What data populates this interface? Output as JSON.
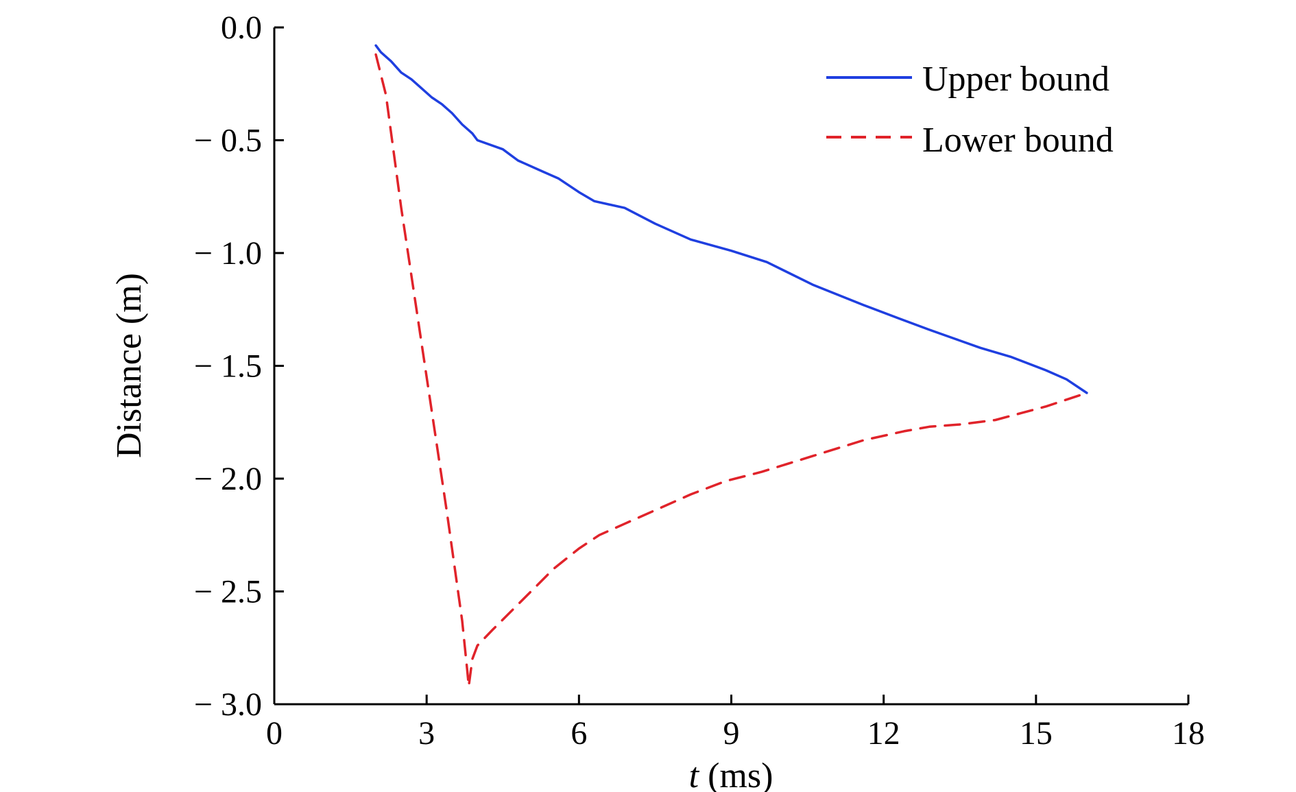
{
  "chart_data": {
    "type": "line",
    "title": "",
    "xlabel_var": "t",
    "xlabel_unit": " (ms)",
    "ylabel": "Distance (m)",
    "xlim": [
      0,
      18
    ],
    "ylim": [
      -3.0,
      0.0
    ],
    "x_ticks": [
      0,
      3,
      6,
      9,
      12,
      15,
      18
    ],
    "x_tick_labels": [
      "0",
      "3",
      "6",
      "9",
      "12",
      "15",
      "18"
    ],
    "y_ticks": [
      0.0,
      -0.5,
      -1.0,
      -1.5,
      -2.0,
      -2.5,
      -3.0
    ],
    "y_tick_labels": [
      "0.0",
      "− 0.5",
      "− 1.0",
      "− 1.5",
      "− 2.0",
      "− 2.5",
      "− 3.0"
    ],
    "grid": false,
    "legend_position": "top-right",
    "series": [
      {
        "name": "Upper bound",
        "color": "#1f3fe0",
        "style": "solid",
        "points": [
          [
            2.0,
            -0.08
          ],
          [
            2.1,
            -0.11
          ],
          [
            2.3,
            -0.15
          ],
          [
            2.5,
            -0.2
          ],
          [
            2.7,
            -0.23
          ],
          [
            2.9,
            -0.27
          ],
          [
            3.1,
            -0.31
          ],
          [
            3.3,
            -0.34
          ],
          [
            3.5,
            -0.38
          ],
          [
            3.7,
            -0.43
          ],
          [
            3.9,
            -0.47
          ],
          [
            4.0,
            -0.5
          ],
          [
            4.5,
            -0.54
          ],
          [
            4.8,
            -0.59
          ],
          [
            5.3,
            -0.64
          ],
          [
            5.6,
            -0.67
          ],
          [
            6.0,
            -0.73
          ],
          [
            6.3,
            -0.77
          ],
          [
            6.9,
            -0.8
          ],
          [
            7.5,
            -0.87
          ],
          [
            8.2,
            -0.94
          ],
          [
            9.0,
            -0.99
          ],
          [
            9.7,
            -1.04
          ],
          [
            10.6,
            -1.14
          ],
          [
            11.6,
            -1.23
          ],
          [
            12.3,
            -1.29
          ],
          [
            12.9,
            -1.34
          ],
          [
            13.4,
            -1.38
          ],
          [
            13.9,
            -1.42
          ],
          [
            14.5,
            -1.46
          ],
          [
            15.2,
            -1.52
          ],
          [
            15.6,
            -1.56
          ],
          [
            16.0,
            -1.62
          ]
        ]
      },
      {
        "name": "Lower bound",
        "color": "#e0232a",
        "style": "dashed",
        "points": [
          [
            2.0,
            -0.12
          ],
          [
            2.2,
            -0.3
          ],
          [
            2.5,
            -0.8
          ],
          [
            2.8,
            -1.25
          ],
          [
            3.1,
            -1.7
          ],
          [
            3.4,
            -2.15
          ],
          [
            3.7,
            -2.63
          ],
          [
            3.8,
            -2.85
          ],
          [
            3.83,
            -2.92
          ],
          [
            3.9,
            -2.8
          ],
          [
            4.0,
            -2.74
          ],
          [
            4.3,
            -2.67
          ],
          [
            4.7,
            -2.58
          ],
          [
            5.1,
            -2.49
          ],
          [
            5.5,
            -2.4
          ],
          [
            6.0,
            -2.31
          ],
          [
            6.4,
            -2.25
          ],
          [
            6.9,
            -2.2
          ],
          [
            7.5,
            -2.14
          ],
          [
            8.2,
            -2.07
          ],
          [
            8.9,
            -2.01
          ],
          [
            9.6,
            -1.97
          ],
          [
            10.6,
            -1.9
          ],
          [
            11.6,
            -1.83
          ],
          [
            12.4,
            -1.79
          ],
          [
            12.9,
            -1.77
          ],
          [
            13.5,
            -1.76
          ],
          [
            14.2,
            -1.74
          ],
          [
            14.7,
            -1.71
          ],
          [
            15.2,
            -1.68
          ],
          [
            15.6,
            -1.65
          ],
          [
            16.0,
            -1.62
          ]
        ]
      }
    ]
  }
}
